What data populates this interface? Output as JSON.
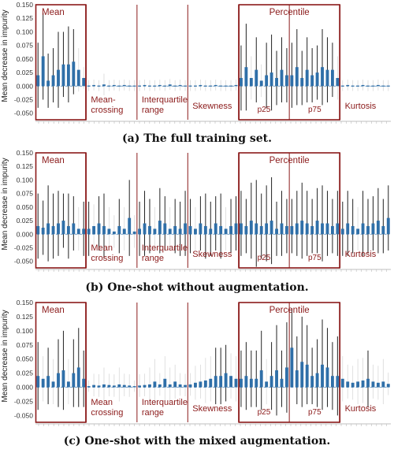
{
  "chart_data": [
    {
      "type": "bar",
      "caption": "(a) The full training set.",
      "ylabel": "Mean decrease in impurity",
      "yticks": [
        "0.150",
        "0.125",
        "0.100",
        "0.075",
        "0.050",
        "0.025",
        "0.000",
        "-0.025",
        "-0.050"
      ],
      "ylim": [
        -0.062,
        0.15
      ],
      "grid": false,
      "groups": [
        {
          "name": "Mean",
          "values": [
            0.02,
            0.055,
            0.01,
            0.02,
            0.03,
            0.04,
            0.04,
            0.045,
            0.03,
            0.015
          ],
          "errors": [
            0.06,
            0.08,
            0.05,
            0.05,
            0.07,
            0.06,
            0.07,
            0.06,
            0.04,
            0.02
          ]
        },
        {
          "name": "Mean-\ncrossing",
          "values": [
            0.001,
            0.002,
            0.001,
            0.003,
            0.001,
            0.002,
            0.001,
            0.002,
            0.001,
            0.001
          ],
          "errors": [
            0.01,
            0.01,
            0.01,
            0.02,
            0.01,
            0.01,
            0.01,
            0.01,
            0.01,
            0.01
          ]
        },
        {
          "name": "Interquartile\nrange",
          "values": [
            0.001,
            0.002,
            0.001,
            0.001,
            0.002,
            0.001,
            0.003,
            0.001,
            0.002,
            0.001
          ],
          "errors": [
            0.01,
            0.01,
            0.01,
            0.01,
            0.01,
            0.01,
            0.01,
            0.01,
            0.01,
            0.01
          ]
        },
        {
          "name": "Skewness",
          "values": [
            0.001,
            0.001,
            0.002,
            0.001,
            0.001,
            0.002,
            0.001,
            0.001,
            0.001,
            0.002
          ],
          "errors": [
            0.01,
            0.01,
            0.01,
            0.01,
            0.01,
            0.01,
            0.01,
            0.01,
            0.01,
            0.01
          ]
        },
        {
          "name": "p25",
          "values": [
            0.015,
            0.035,
            0.015,
            0.03,
            0.01,
            0.02,
            0.025,
            0.015,
            0.03,
            0.02
          ],
          "errors": [
            0.06,
            0.08,
            0.04,
            0.06,
            0.03,
            0.06,
            0.07,
            0.05,
            0.06,
            0.05
          ]
        },
        {
          "name": "p75",
          "values": [
            0.02,
            0.035,
            0.015,
            0.03,
            0.02,
            0.025,
            0.035,
            0.03,
            0.03,
            0.015
          ],
          "errors": [
            0.06,
            0.07,
            0.05,
            0.06,
            0.05,
            0.05,
            0.07,
            0.06,
            0.05,
            0.04
          ]
        },
        {
          "name": "Kurtosis",
          "values": [
            0.001,
            0.002,
            0.001,
            0.001,
            0.002,
            0.001,
            0.001,
            0.002,
            0.001,
            0.001
          ],
          "errors": [
            0.01,
            0.01,
            0.01,
            0.01,
            0.01,
            0.01,
            0.01,
            0.01,
            0.01,
            0.01
          ]
        }
      ],
      "boxes": [
        {
          "label": "Mean",
          "groups": [
            0
          ],
          "label_pos": "top-left"
        },
        {
          "label": "Percentile",
          "groups": [
            4,
            5
          ],
          "label_pos": "top-center"
        }
      ]
    },
    {
      "type": "bar",
      "caption": "(b) One-shot without augmentation.",
      "ylabel": "Mean decrease in impurity",
      "yticks": [
        "0.150",
        "0.125",
        "0.100",
        "0.075",
        "0.050",
        "0.025",
        "0.000",
        "-0.025",
        "-0.050"
      ],
      "ylim": [
        -0.062,
        0.15
      ],
      "grid": false,
      "groups": [
        {
          "name": "Mean",
          "values": [
            0.015,
            0.012,
            0.02,
            0.015,
            0.02,
            0.025,
            0.015,
            0.02,
            0.01,
            0.01
          ],
          "errors": [
            0.06,
            0.05,
            0.07,
            0.06,
            0.06,
            0.05,
            0.06,
            0.05,
            0.04,
            0.05
          ]
        },
        {
          "name": "Mean\ncrossing",
          "values": [
            0.01,
            0.015,
            0.02,
            0.015,
            0.01,
            0.005,
            0.015,
            0.01,
            0.03,
            0.005
          ],
          "errors": [
            0.05,
            0.04,
            0.05,
            0.06,
            0.04,
            0.03,
            0.05,
            0.04,
            0.07,
            0.03
          ]
        },
        {
          "name": "Interquartile\nrange",
          "values": [
            0.01,
            0.02,
            0.015,
            0.01,
            0.025,
            0.02,
            0.01,
            0.015,
            0.01,
            0.02
          ],
          "errors": [
            0.05,
            0.06,
            0.05,
            0.04,
            0.06,
            0.05,
            0.04,
            0.05,
            0.05,
            0.06
          ]
        },
        {
          "name": "Skewness",
          "values": [
            0.015,
            0.01,
            0.02,
            0.015,
            0.01,
            0.02,
            0.015,
            0.01,
            0.015,
            0.02
          ],
          "errors": [
            0.05,
            0.04,
            0.05,
            0.06,
            0.05,
            0.05,
            0.06,
            0.04,
            0.05,
            0.05
          ]
        },
        {
          "name": "p25",
          "values": [
            0.02,
            0.015,
            0.025,
            0.02,
            0.015,
            0.02,
            0.025,
            0.01,
            0.02,
            0.015
          ],
          "errors": [
            0.06,
            0.05,
            0.07,
            0.08,
            0.06,
            0.07,
            0.08,
            0.05,
            0.06,
            0.05
          ]
        },
        {
          "name": "p75",
          "values": [
            0.015,
            0.02,
            0.025,
            0.02,
            0.015,
            0.025,
            0.02,
            0.02,
            0.015,
            0.02
          ],
          "errors": [
            0.05,
            0.06,
            0.07,
            0.06,
            0.05,
            0.06,
            0.07,
            0.06,
            0.05,
            0.06
          ]
        },
        {
          "name": "Kurtosis",
          "values": [
            0.01,
            0.02,
            0.015,
            0.01,
            0.02,
            0.015,
            0.02,
            0.025,
            0.015,
            0.03
          ],
          "errors": [
            0.05,
            0.06,
            0.05,
            0.04,
            0.06,
            0.05,
            0.05,
            0.06,
            0.05,
            0.06
          ]
        }
      ],
      "boxes": [
        {
          "label": "Mean",
          "groups": [
            0
          ],
          "label_pos": "top-left"
        },
        {
          "label": "Percentile",
          "groups": [
            4,
            5
          ],
          "label_pos": "top-center"
        }
      ]
    },
    {
      "type": "bar",
      "caption": "(c) One-shot with the mixed augmentation.",
      "ylabel": "Mean decrease in impurity",
      "yticks": [
        "0.150",
        "0.125",
        "0.100",
        "0.075",
        "0.050",
        "0.025",
        "0.000",
        "-0.025",
        "-0.050"
      ],
      "ylim": [
        -0.062,
        0.15
      ],
      "grid": false,
      "groups": [
        {
          "name": "Mean",
          "values": [
            0.02,
            0.015,
            0.02,
            0.01,
            0.025,
            0.03,
            0.01,
            0.025,
            0.035,
            0.015
          ],
          "errors": [
            0.06,
            0.04,
            0.05,
            0.04,
            0.06,
            0.07,
            0.04,
            0.06,
            0.07,
            0.05
          ]
        },
        {
          "name": "Mean\ncrossing",
          "values": [
            0.002,
            0.004,
            0.003,
            0.005,
            0.004,
            0.003,
            0.005,
            0.004,
            0.003,
            0.002
          ],
          "errors": [
            0.01,
            0.02,
            0.02,
            0.03,
            0.02,
            0.02,
            0.03,
            0.02,
            0.02,
            0.01
          ]
        },
        {
          "name": "Interquartile\nrange",
          "values": [
            0.003,
            0.004,
            0.005,
            0.01,
            0.005,
            0.015,
            0.005,
            0.01,
            0.005,
            0.004
          ],
          "errors": [
            0.02,
            0.02,
            0.03,
            0.04,
            0.02,
            0.04,
            0.03,
            0.03,
            0.02,
            0.02
          ]
        },
        {
          "name": "Skewness",
          "values": [
            0.005,
            0.008,
            0.01,
            0.012,
            0.015,
            0.02,
            0.02,
            0.025,
            0.02,
            0.015
          ],
          "errors": [
            0.02,
            0.03,
            0.03,
            0.04,
            0.04,
            0.05,
            0.05,
            0.05,
            0.04,
            0.04
          ]
        },
        {
          "name": "p25",
          "values": [
            0.015,
            0.02,
            0.015,
            0.015,
            0.03,
            0.01,
            0.02,
            0.03,
            0.015,
            0.035
          ],
          "errors": [
            0.05,
            0.06,
            0.05,
            0.05,
            0.07,
            0.04,
            0.06,
            0.08,
            0.05,
            0.08
          ]
        },
        {
          "name": "p75",
          "values": [
            0.07,
            0.03,
            0.045,
            0.04,
            0.02,
            0.025,
            0.04,
            0.035,
            0.02,
            0.02
          ],
          "errors": [
            0.07,
            0.06,
            0.08,
            0.07,
            0.05,
            0.06,
            0.08,
            0.07,
            0.06,
            0.07
          ]
        },
        {
          "name": "Kurtosis",
          "values": [
            0.015,
            0.01,
            0.008,
            0.01,
            0.012,
            0.015,
            0.01,
            0.008,
            0.01,
            0.006
          ],
          "errors": [
            0.04,
            0.03,
            0.03,
            0.04,
            0.04,
            0.05,
            0.03,
            0.03,
            0.04,
            0.02
          ]
        }
      ],
      "boxes": [
        {
          "label": "Mean",
          "groups": [
            0
          ],
          "label_pos": "top-left"
        },
        {
          "label": "Percentile",
          "groups": [
            4,
            5
          ],
          "label_pos": "top-center"
        }
      ]
    }
  ]
}
